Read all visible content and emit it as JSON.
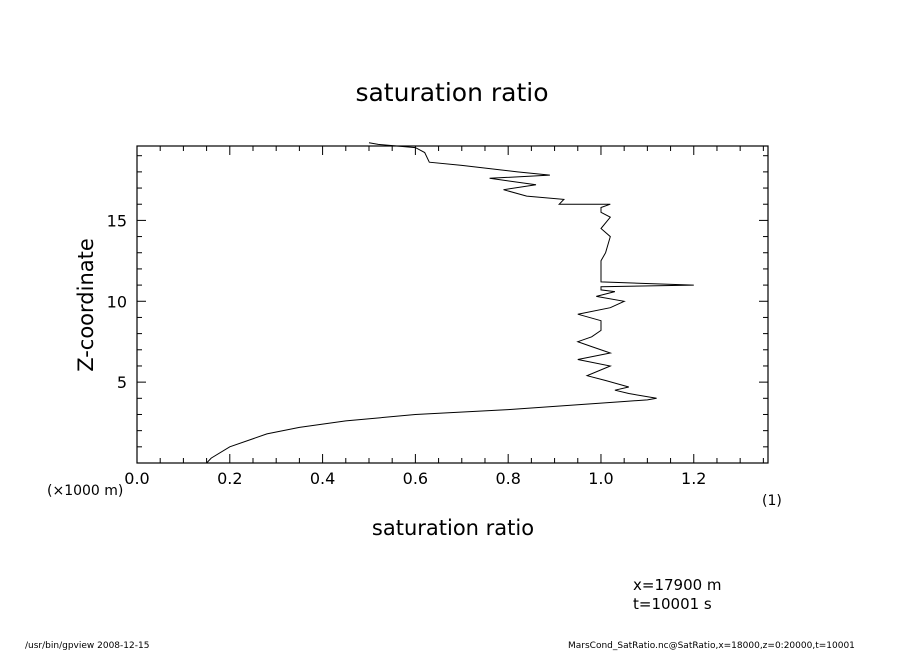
{
  "chart_data": {
    "type": "line",
    "title": "saturation ratio",
    "xlabel": "saturation ratio",
    "ylabel": "Z-coordinate",
    "x_unit": "(1)",
    "y_unit": "(×1000 m)",
    "xlim": [
      0.0,
      1.36
    ],
    "ylim": [
      0,
      19.6
    ],
    "x_ticks": [
      "0.0",
      "0.2",
      "0.4",
      "0.6",
      "0.8",
      "1.0",
      "1.2"
    ],
    "y_ticks": [
      "5",
      "10",
      "15"
    ],
    "series": [
      {
        "x": [
          0.15,
          0.16,
          0.2,
          0.28,
          0.35,
          0.45,
          0.6,
          0.8,
          0.95,
          1.05,
          1.1,
          1.12,
          1.06,
          1.03,
          1.06,
          1.01,
          0.97,
          1.02,
          0.95,
          1.02,
          0.98,
          0.95,
          0.98,
          1.0,
          1.0,
          0.95,
          1.02,
          1.05,
          0.99,
          1.03,
          1.0,
          1.0,
          1.2,
          1.0,
          1.0,
          1.01,
          1.02,
          1.0,
          1.02,
          1.0,
          1.0,
          1.02,
          0.91,
          0.92,
          0.84,
          0.79,
          0.86,
          0.76,
          0.89,
          0.82,
          0.7,
          0.63,
          0.62,
          0.6,
          0.52,
          0.5
        ],
        "y": [
          0,
          0.3,
          1.0,
          1.8,
          2.2,
          2.6,
          3.0,
          3.3,
          3.6,
          3.8,
          3.9,
          4.0,
          4.3,
          4.5,
          4.7,
          5.1,
          5.4,
          6.0,
          6.4,
          6.8,
          7.2,
          7.5,
          7.8,
          8.2,
          8.8,
          9.2,
          9.6,
          10.0,
          10.3,
          10.6,
          10.7,
          10.9,
          11.0,
          11.2,
          12.5,
          13.0,
          14.0,
          14.5,
          15.2,
          15.5,
          15.8,
          16.0,
          16.0,
          16.3,
          16.5,
          16.9,
          17.2,
          17.6,
          17.8,
          18.0,
          18.4,
          18.6,
          19.2,
          19.5,
          19.7,
          19.8
        ]
      }
    ],
    "grid": false,
    "legend": "none"
  },
  "info": {
    "line1": "x=17900  m",
    "line2": "t=10001  s"
  },
  "footer": {
    "left": "/usr/bin/gpview   2008-12-15",
    "right": "MarsCond_SatRatio.nc@SatRatio,x=18000,z=0:20000,t=10001"
  }
}
